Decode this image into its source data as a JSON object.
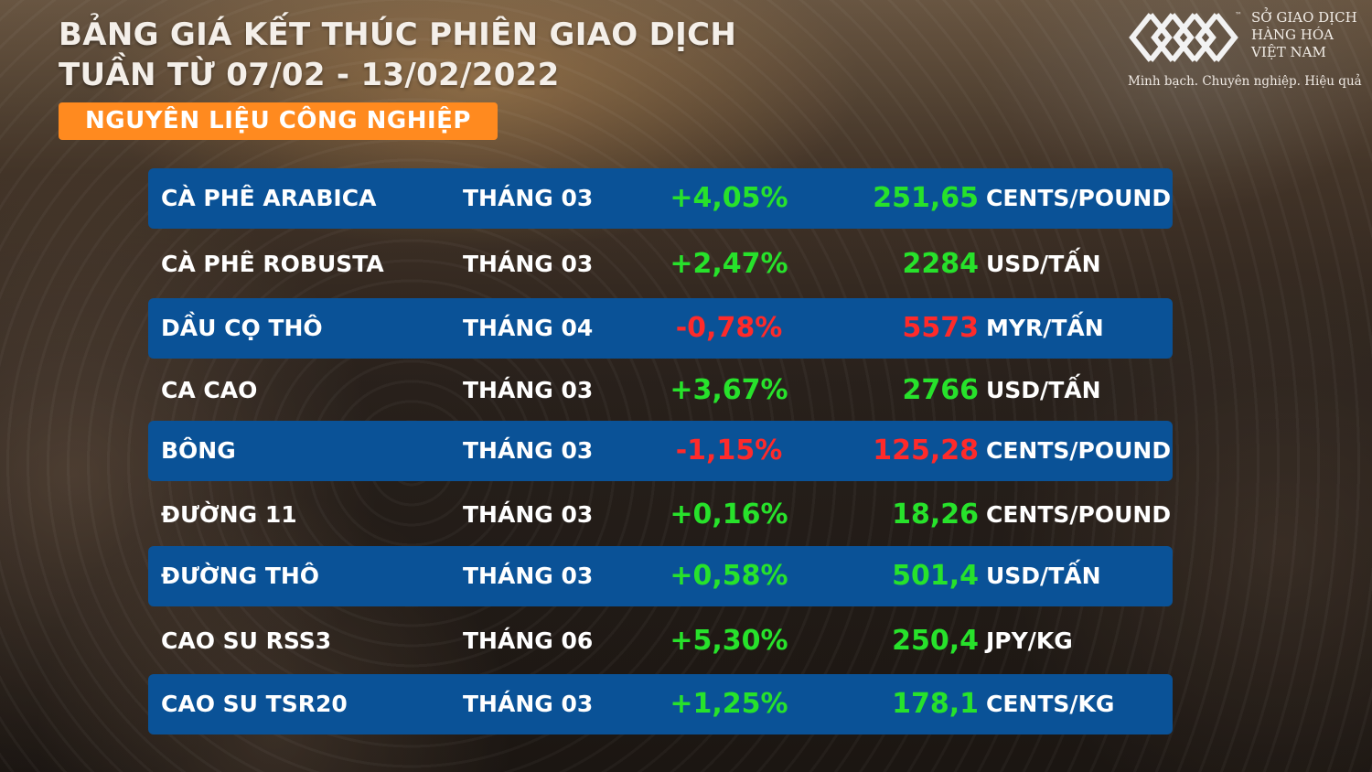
{
  "header": {
    "title_line1": "BẢNG GIÁ KẾT THÚC PHIÊN GIAO DỊCH",
    "title_line2": "TUẦN TỪ 07/02 - 13/02/2022",
    "category": "NGUYÊN LIỆU CÔNG NGHIỆP"
  },
  "logo": {
    "tm": "™",
    "name_line1": "SỞ GIAO DỊCH",
    "name_line2": "HÀNG HÓA",
    "name_line3": "VIỆT NAM",
    "slogan": "Minh bạch. Chuyên nghiệp. Hiệu quả"
  },
  "colors": {
    "band": "#0a5297",
    "up": "#27e22b",
    "down": "#ff2a2a",
    "category": "#ff8a1f"
  },
  "rows": [
    {
      "name": "CÀ PHÊ ARABICA",
      "month": "THÁNG 03",
      "change": "+4,05%",
      "price": "251,65",
      "unit": "CENTS/POUND",
      "direction": "up"
    },
    {
      "name": "CÀ PHÊ ROBUSTA",
      "month": "THÁNG 03",
      "change": "+2,47%",
      "price": "2284",
      "unit": "USD/TẤN",
      "direction": "up"
    },
    {
      "name": "DẦU CỌ THÔ",
      "month": "THÁNG 04",
      "change": "-0,78%",
      "price": "5573",
      "unit": "MYR/TẤN",
      "direction": "down"
    },
    {
      "name": "CA CAO",
      "month": "THÁNG 03",
      "change": "+3,67%",
      "price": "2766",
      "unit": "USD/TẤN",
      "direction": "up"
    },
    {
      "name": "BÔNG",
      "month": "THÁNG 03",
      "change": "-1,15%",
      "price": "125,28",
      "unit": "CENTS/POUND",
      "direction": "down"
    },
    {
      "name": "ĐƯỜNG 11",
      "month": "THÁNG 03",
      "change": "+0,16%",
      "price": "18,26",
      "unit": "CENTS/POUND",
      "direction": "up"
    },
    {
      "name": "ĐƯỜNG THÔ",
      "month": "THÁNG 03",
      "change": "+0,58%",
      "price": "501,4",
      "unit": "USD/TẤN",
      "direction": "up"
    },
    {
      "name": "CAO SU RSS3",
      "month": "THÁNG 06",
      "change": "+5,30%",
      "price": "250,4",
      "unit": "JPY/KG",
      "direction": "up"
    },
    {
      "name": "CAO SU TSR20",
      "month": "THÁNG 03",
      "change": "+1,25%",
      "price": "178,1",
      "unit": "CENTS/KG",
      "direction": "up"
    }
  ]
}
